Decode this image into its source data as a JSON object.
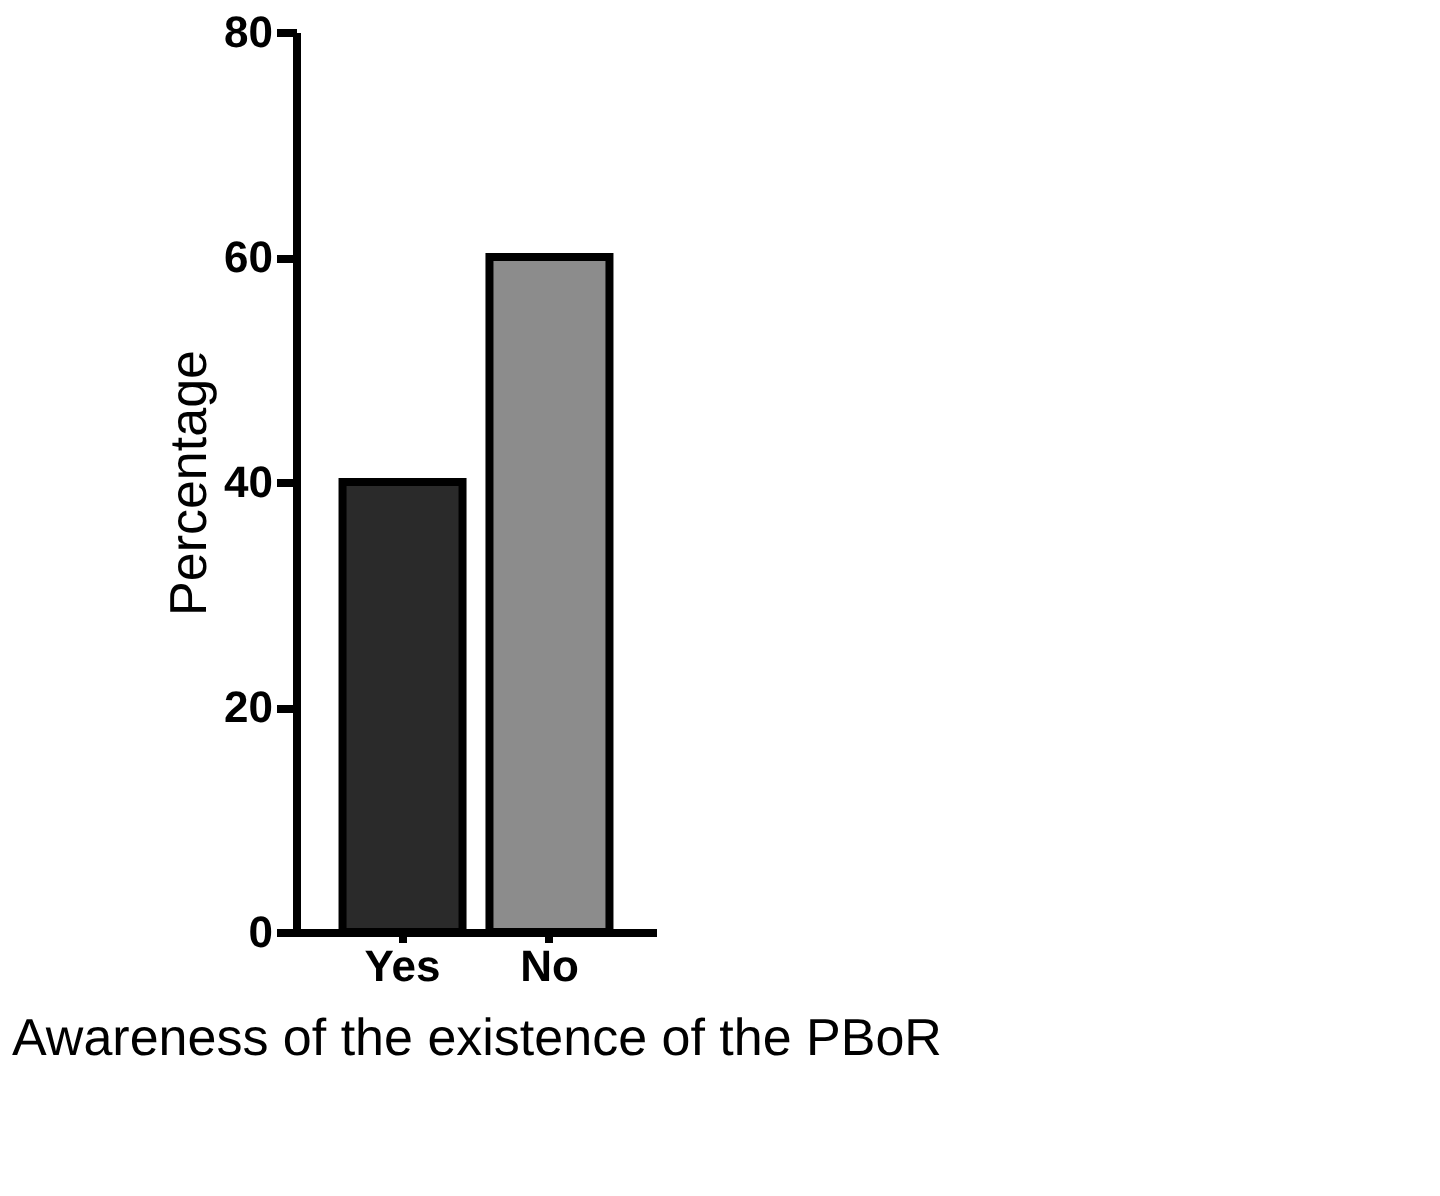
{
  "chart_data": {
    "type": "bar",
    "xlabel": "Awareness of the existence of the PBoR",
    "ylabel": "Percentage",
    "categories": [
      "Yes",
      "No"
    ],
    "values": [
      40,
      60
    ],
    "colors": [
      "#2a2a2a",
      "#8c8c8c"
    ],
    "ylim": [
      0,
      80
    ],
    "yticks": [
      0,
      20,
      40,
      60,
      80
    ],
    "grid": false
  }
}
